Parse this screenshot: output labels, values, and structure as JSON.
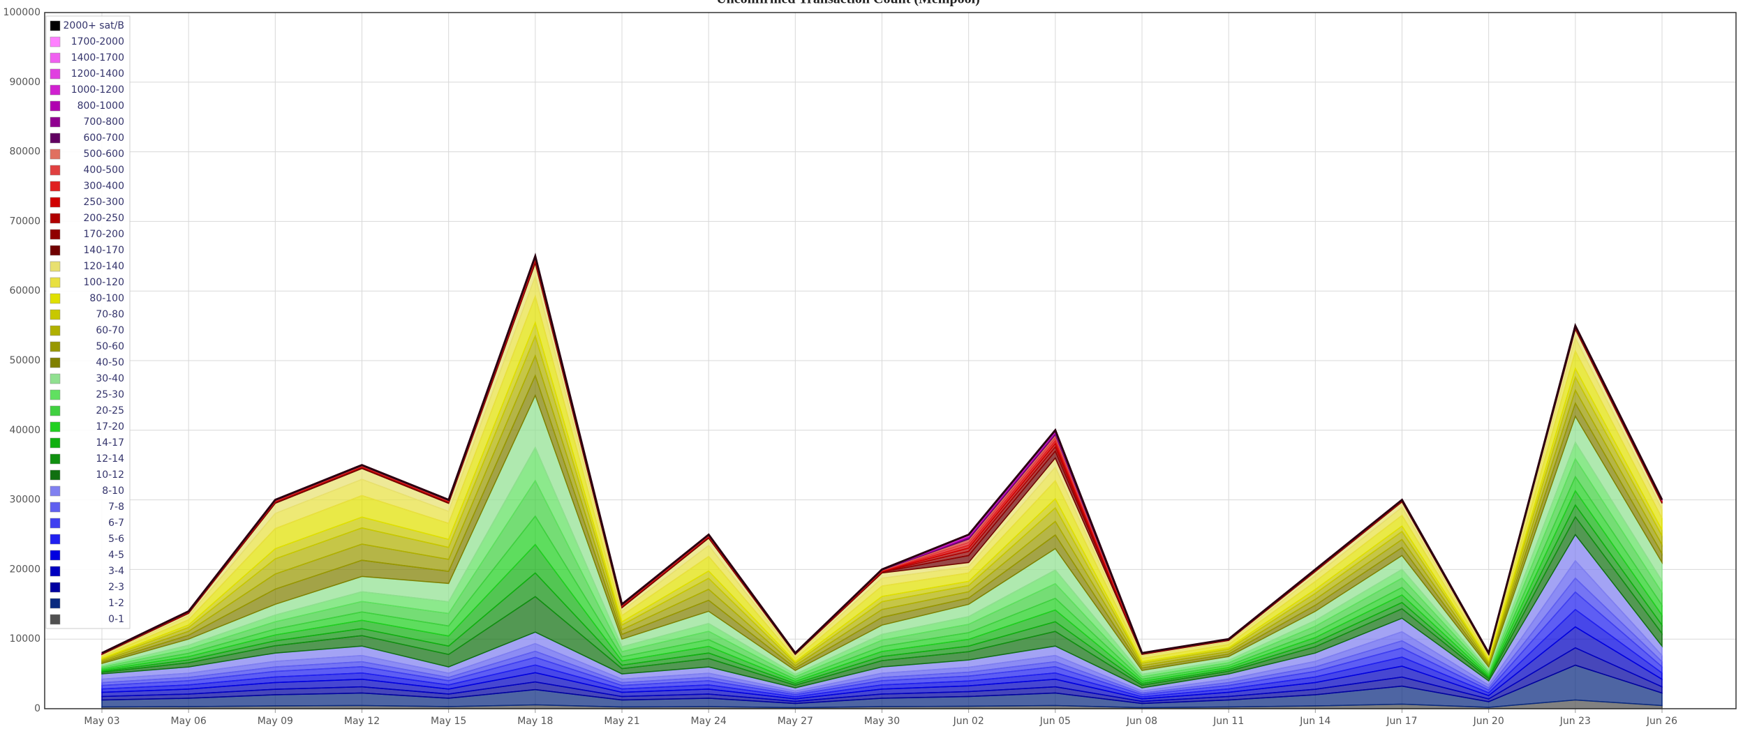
{
  "chart_data": {
    "type": "stacked_area",
    "title": "Unconfirmed Transaction Count (Mempool)",
    "x": [
      "May 03",
      "May 06",
      "May 09",
      "May 12",
      "May 15",
      "May 18",
      "May 21",
      "May 24",
      "May 27",
      "May 30",
      "Jun 02",
      "Jun 05",
      "Jun 08",
      "Jun 11",
      "Jun 14",
      "Jun 17",
      "Jun 20",
      "Jun 23",
      "Jun 26"
    ],
    "ylim": [
      0,
      100000
    ],
    "yticks": [
      0,
      10000,
      20000,
      30000,
      40000,
      50000,
      60000,
      70000,
      80000,
      90000,
      100000
    ],
    "grid": true,
    "legend": "top-left",
    "series": [
      {
        "name": "2000+ sat/B",
        "color": "#000000",
        "values": [
          2,
          3,
          5,
          5,
          5,
          10,
          5,
          5,
          2,
          5,
          40,
          40,
          2,
          2,
          3,
          3,
          2,
          5,
          5
        ]
      },
      {
        "name": "1700-2000",
        "color": "#ff80ff",
        "values": [
          2,
          3,
          5,
          5,
          5,
          10,
          5,
          5,
          2,
          5,
          40,
          40,
          2,
          2,
          3,
          3,
          2,
          5,
          5
        ]
      },
      {
        "name": "1400-1700",
        "color": "#f060f0",
        "values": [
          2,
          3,
          5,
          5,
          5,
          10,
          5,
          5,
          2,
          5,
          40,
          40,
          2,
          2,
          3,
          3,
          2,
          5,
          5
        ]
      },
      {
        "name": "1200-1400",
        "color": "#e040e0",
        "values": [
          2,
          3,
          5,
          5,
          5,
          10,
          5,
          5,
          2,
          5,
          40,
          40,
          2,
          2,
          3,
          3,
          2,
          5,
          5
        ]
      },
      {
        "name": "1000-1200",
        "color": "#d020d0",
        "values": [
          4,
          6,
          10,
          10,
          10,
          20,
          10,
          10,
          4,
          10,
          80,
          80,
          4,
          4,
          6,
          6,
          4,
          10,
          10
        ]
      },
      {
        "name": "800-1000",
        "color": "#b000b0",
        "values": [
          6,
          9,
          15,
          15,
          15,
          30,
          15,
          15,
          6,
          15,
          120,
          120,
          6,
          6,
          9,
          9,
          6,
          15,
          15
        ]
      },
      {
        "name": "700-800",
        "color": "#900090",
        "values": [
          6,
          9,
          15,
          15,
          15,
          30,
          15,
          15,
          6,
          15,
          120,
          120,
          6,
          6,
          9,
          9,
          6,
          15,
          15
        ]
      },
      {
        "name": "600-700",
        "color": "#600060",
        "values": [
          8,
          12,
          20,
          20,
          20,
          40,
          20,
          20,
          8,
          20,
          160,
          160,
          8,
          8,
          12,
          12,
          8,
          20,
          20
        ]
      },
      {
        "name": "500-600",
        "color": "#e07060",
        "values": [
          10,
          15,
          25,
          25,
          25,
          50,
          25,
          25,
          10,
          25,
          200,
          200,
          10,
          10,
          15,
          15,
          10,
          25,
          25
        ]
      },
      {
        "name": "400-500",
        "color": "#e04040",
        "values": [
          14,
          21,
          35,
          35,
          35,
          70,
          35,
          35,
          14,
          35,
          280,
          280,
          14,
          14,
          21,
          21,
          14,
          35,
          35
        ]
      },
      {
        "name": "300-400",
        "color": "#e02020",
        "values": [
          20,
          30,
          50,
          50,
          50,
          100,
          50,
          50,
          20,
          50,
          400,
          400,
          20,
          20,
          30,
          30,
          20,
          50,
          50
        ]
      },
      {
        "name": "250-300",
        "color": "#d00000",
        "values": [
          20,
          30,
          50,
          50,
          50,
          100,
          50,
          50,
          20,
          50,
          400,
          400,
          20,
          20,
          30,
          30,
          20,
          50,
          50
        ]
      },
      {
        "name": "200-250",
        "color": "#b00000",
        "values": [
          24,
          36,
          60,
          60,
          60,
          120,
          60,
          60,
          24,
          60,
          480,
          480,
          24,
          24,
          36,
          36,
          24,
          60,
          60
        ]
      },
      {
        "name": "170-200",
        "color": "#900000",
        "values": [
          30,
          45,
          75,
          75,
          75,
          150,
          75,
          75,
          30,
          75,
          600,
          600,
          30,
          30,
          45,
          45,
          30,
          75,
          75
        ]
      },
      {
        "name": "140-170",
        "color": "#700000",
        "values": [
          50,
          75,
          125,
          125,
          125,
          250,
          125,
          125,
          50,
          125,
          1000,
          1000,
          50,
          50,
          75,
          75,
          50,
          125,
          125
        ]
      },
      {
        "name": "120-140",
        "color": "#e8e070",
        "values": [
          130,
          370,
          1450,
          1550,
          1150,
          1900,
          450,
          1050,
          230,
          750,
          600,
          1300,
          230,
          230,
          570,
          770,
          180,
          1250,
          850
        ]
      },
      {
        "name": "100-120",
        "color": "#e8e040",
        "values": [
          195,
          555,
          2175,
          2325,
          1725,
          2850,
          675,
          1575,
          345,
          1125,
          900,
          1950,
          345,
          345,
          855,
          1155,
          270,
          1875,
          1275
        ]
      },
      {
        "name": "80-100",
        "color": "#e0e000",
        "values": [
          260,
          740,
          2900,
          3100,
          2300,
          3800,
          900,
          2100,
          460,
          1500,
          1200,
          2600,
          460,
          460,
          1140,
          1540,
          360,
          2500,
          1700
        ]
      },
      {
        "name": "70-80",
        "color": "#c8c800",
        "values": [
          130,
          370,
          1450,
          1550,
          1150,
          1900,
          450,
          1050,
          230,
          750,
          600,
          1300,
          230,
          230,
          570,
          770,
          180,
          1250,
          850
        ]
      },
      {
        "name": "60-70",
        "color": "#b0b000",
        "values": [
          195,
          555,
          2175,
          2325,
          1725,
          2850,
          675,
          1575,
          345,
          1125,
          900,
          1950,
          345,
          345,
          855,
          1155,
          270,
          1875,
          1275
        ]
      },
      {
        "name": "50-60",
        "color": "#989800",
        "values": [
          195,
          555,
          2175,
          2325,
          1725,
          2850,
          675,
          1575,
          345,
          1125,
          900,
          1950,
          345,
          345,
          855,
          1155,
          270,
          1875,
          1275
        ]
      },
      {
        "name": "40-50",
        "color": "#808000",
        "values": [
          195,
          555,
          2175,
          2325,
          1725,
          2850,
          675,
          1575,
          345,
          1125,
          900,
          1950,
          345,
          345,
          855,
          1155,
          270,
          1875,
          1275
        ]
      },
      {
        "name": "30-40",
        "color": "#90e090",
        "values": [
          330,
          880,
          1540,
          2200,
          2640,
          7480,
          1100,
          1760,
          550,
          1320,
          1760,
          3080,
          550,
          550,
          1320,
          1980,
          440,
          3740,
          2640
        ]
      },
      {
        "name": "25-30",
        "color": "#60e060",
        "values": [
          210,
          560,
          980,
          1400,
          1680,
          4760,
          700,
          1120,
          350,
          840,
          1120,
          1960,
          350,
          350,
          840,
          1260,
          280,
          2380,
          1680
        ]
      },
      {
        "name": "20-25",
        "color": "#40d040",
        "values": [
          225,
          600,
          1050,
          1500,
          1800,
          5100,
          750,
          1200,
          375,
          900,
          1200,
          2100,
          375,
          375,
          900,
          1350,
          300,
          2550,
          1800
        ]
      },
      {
        "name": "17-20",
        "color": "#20d020",
        "values": [
          180,
          480,
          840,
          1200,
          1440,
          4080,
          600,
          960,
          300,
          720,
          960,
          1680,
          300,
          300,
          720,
          1080,
          240,
          2040,
          1440
        ]
      },
      {
        "name": "14-17",
        "color": "#10b010",
        "values": [
          180,
          480,
          840,
          1200,
          1440,
          4080,
          600,
          960,
          300,
          720,
          960,
          1680,
          300,
          300,
          720,
          1080,
          240,
          2040,
          1440
        ]
      },
      {
        "name": "12-14",
        "color": "#109010",
        "values": [
          150,
          400,
          700,
          1000,
          1200,
          3400,
          500,
          800,
          250,
          600,
          800,
          1400,
          250,
          250,
          600,
          900,
          200,
          1700,
          1200
        ]
      },
      {
        "name": "10-12",
        "color": "#107010",
        "values": [
          225,
          600,
          1050,
          1500,
          1800,
          5100,
          750,
          1200,
          375,
          900,
          1200,
          2100,
          375,
          375,
          900,
          1350,
          300,
          2550,
          1800
        ]
      },
      {
        "name": "8-10",
        "color": "#8080f0",
        "values": [
          750,
          900,
          1200,
          1350,
          900,
          1650,
          750,
          900,
          450,
          900,
          1050,
          1350,
          450,
          750,
          1200,
          1950,
          600,
          3750,
          1350
        ]
      },
      {
        "name": "7-8",
        "color": "#6060f0",
        "values": [
          500,
          600,
          800,
          900,
          600,
          1100,
          500,
          600,
          300,
          600,
          700,
          900,
          300,
          500,
          800,
          1300,
          400,
          2500,
          900
        ]
      },
      {
        "name": "6-7",
        "color": "#4040f0",
        "values": [
          400,
          480,
          640,
          720,
          480,
          880,
          400,
          480,
          240,
          480,
          560,
          720,
          240,
          400,
          640,
          1040,
          320,
          2000,
          720
        ]
      },
      {
        "name": "5-6",
        "color": "#2020f0",
        "values": [
          500,
          600,
          800,
          900,
          600,
          1100,
          500,
          600,
          300,
          600,
          700,
          900,
          300,
          500,
          800,
          1300,
          400,
          2500,
          900
        ]
      },
      {
        "name": "4-5",
        "color": "#0000e0",
        "values": [
          500,
          600,
          800,
          900,
          600,
          1100,
          500,
          600,
          300,
          600,
          700,
          900,
          300,
          500,
          800,
          1300,
          400,
          2500,
          900
        ]
      },
      {
        "name": "3-4",
        "color": "#0000c0",
        "values": [
          600,
          720,
          960,
          1080,
          720,
          1320,
          600,
          720,
          360,
          720,
          840,
          1080,
          360,
          600,
          960,
          1560,
          480,
          3000,
          1080
        ]
      },
      {
        "name": "2-3",
        "color": "#0000a0",
        "values": [
          500,
          600,
          800,
          900,
          600,
          1100,
          500,
          600,
          300,
          600,
          700,
          900,
          300,
          500,
          800,
          1300,
          400,
          2500,
          900
        ]
      },
      {
        "name": "1-2",
        "color": "#0a2a80",
        "values": [
          1000,
          1200,
          1600,
          1800,
          1200,
          2200,
          1000,
          1200,
          600,
          1200,
          1400,
          1800,
          600,
          1000,
          1600,
          2600,
          800,
          5000,
          1800
        ]
      },
      {
        "name": "0-1",
        "color": "#505050",
        "values": [
          250,
          300,
          400,
          450,
          300,
          550,
          250,
          300,
          150,
          300,
          350,
          450,
          150,
          250,
          400,
          650,
          200,
          1250,
          450
        ]
      }
    ]
  }
}
